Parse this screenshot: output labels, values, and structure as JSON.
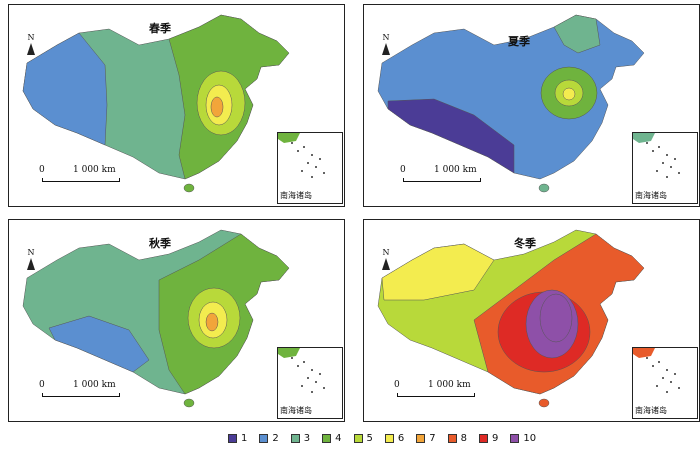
{
  "palette": {
    "1": "#4b3c96",
    "2": "#5b8fd0",
    "3": "#6fb48f",
    "4": "#6fb33e",
    "5": "#b8d93a",
    "6": "#f3ec4f",
    "7": "#f2a53a",
    "8": "#e85b2b",
    "9": "#de2a25",
    "10": "#8e50a8"
  },
  "legend": [
    {
      "label": "1",
      "color": "#4b3c96"
    },
    {
      "label": "2",
      "color": "#5b8fd0"
    },
    {
      "label": "3",
      "color": "#6fb48f"
    },
    {
      "label": "4",
      "color": "#6fb33e"
    },
    {
      "label": "5",
      "color": "#b8d93a"
    },
    {
      "label": "6",
      "color": "#f3ec4f"
    },
    {
      "label": "7",
      "color": "#f2a53a"
    },
    {
      "label": "8",
      "color": "#e85b2b"
    },
    {
      "label": "9",
      "color": "#de2a25"
    },
    {
      "label": "10",
      "color": "#8e50a8"
    }
  ],
  "panels": {
    "spring": {
      "title": "春季",
      "base_color": "#6fb48f",
      "west_color": "#5b8fd0",
      "east_color": "#6fb33e",
      "hotspot_colors": [
        "#b8d93a",
        "#f3ec4f",
        "#f2a53a"
      ]
    },
    "summer": {
      "title": "夏季",
      "base_color": "#5b8fd0",
      "west_color": "#4b3c96",
      "east_color": "#6fb48f",
      "hotspot_colors": [
        "#6fb33e",
        "#b8d93a",
        "#f3ec4f"
      ]
    },
    "autumn": {
      "title": "秋季",
      "base_color": "#6fb48f",
      "west_color": "#5b8fd0",
      "east_color": "#6fb33e",
      "hotspot_colors": [
        "#b8d93a",
        "#f3ec4f",
        "#f2a53a"
      ]
    },
    "winter": {
      "title": "冬季",
      "base_color": "#b8d93a",
      "west_color": "#f3ec4f",
      "east_color": "#e85b2b",
      "hotspot_colors": [
        "#de2a25",
        "#8e50a8",
        "#8e50a8"
      ]
    }
  },
  "north_label": "N",
  "scale_zero": "0",
  "scale_distance": "1 000 km",
  "inset_label": "南海诸岛"
}
